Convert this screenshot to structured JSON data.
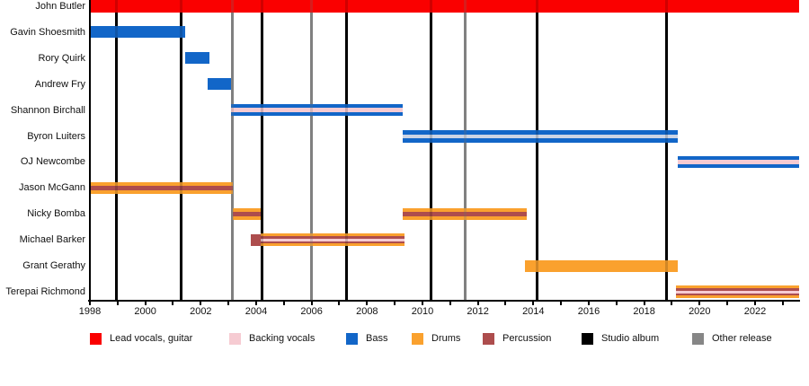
{
  "chart_data": {
    "type": "timeline",
    "description": "Band membership timeline with instrument roles and release markers",
    "members": [
      {
        "name": "John Butler",
        "stints": [
          {
            "start": 1998.0,
            "end": 2023.6,
            "roles": [
              "lead_vocals_guitar"
            ]
          }
        ]
      },
      {
        "name": "Gavin Shoesmith",
        "stints": [
          {
            "start": 1998.0,
            "end": 2001.45,
            "roles": [
              "bass"
            ]
          }
        ]
      },
      {
        "name": "Rory Quirk",
        "stints": [
          {
            "start": 2001.45,
            "end": 2002.3,
            "roles": [
              "bass"
            ]
          }
        ]
      },
      {
        "name": "Andrew Fry",
        "stints": [
          {
            "start": 2002.25,
            "end": 2003.1,
            "roles": [
              "bass"
            ]
          }
        ]
      },
      {
        "name": "Shannon Birchall",
        "stints": [
          {
            "start": 2003.1,
            "end": 2009.3,
            "roles": [
              "bass",
              "backing_vocals",
              "bass"
            ]
          }
        ]
      },
      {
        "name": "Byron Luiters",
        "stints": [
          {
            "start": 2009.3,
            "end": 2019.2,
            "roles": [
              "bass",
              "backing_vocals_pale",
              "bass"
            ]
          }
        ]
      },
      {
        "name": "OJ Newcombe",
        "stints": [
          {
            "start": 2019.2,
            "end": 2023.6,
            "roles": [
              "bass",
              "backing_vocals",
              "bass"
            ]
          }
        ]
      },
      {
        "name": "Jason McGann",
        "stints": [
          {
            "start": 1998.0,
            "end": 2003.15,
            "roles": [
              "drums",
              "percussion",
              "drums"
            ]
          }
        ]
      },
      {
        "name": "Nicky Bomba",
        "stints": [
          {
            "start": 2003.15,
            "end": 2004.15,
            "roles": [
              "drums",
              "percussion",
              "drums"
            ]
          },
          {
            "start": 2009.3,
            "end": 2013.75,
            "roles": [
              "drums",
              "percussion",
              "drums"
            ]
          }
        ]
      },
      {
        "name": "Michael Barker",
        "stints": [
          {
            "start": 2003.8,
            "end": 2004.15,
            "roles": [
              "percussion"
            ]
          },
          {
            "start": 2004.15,
            "end": 2009.35,
            "roles": [
              "drums",
              "percussion",
              "backing_vocals",
              "percussion",
              "drums"
            ]
          }
        ]
      },
      {
        "name": "Grant Gerathy",
        "stints": [
          {
            "start": 2013.7,
            "end": 2019.2,
            "roles": [
              "drums"
            ]
          }
        ]
      },
      {
        "name": "Terepai Richmond",
        "stints": [
          {
            "start": 2019.15,
            "end": 2023.6,
            "roles": [
              "drums",
              "percussion",
              "backing_vocals",
              "percussion",
              "drums"
            ]
          }
        ]
      }
    ],
    "events": {
      "studio_albums": [
        1998.95,
        2001.3,
        2004.2,
        2007.25,
        2010.3,
        2014.15,
        2018.8
      ],
      "other_releases": [
        2003.15,
        2006.0,
        2011.55
      ]
    },
    "x_axis": {
      "min": 1998,
      "max": 2023.6,
      "major_tick_years": [
        1998,
        2000,
        2002,
        2004,
        2006,
        2008,
        2010,
        2012,
        2014,
        2016,
        2018,
        2020,
        2022
      ],
      "major_tick_labels": [
        "1998",
        "2000",
        "2002",
        "2004",
        "2006",
        "2008",
        "2010",
        "2012",
        "2014",
        "2016",
        "2018",
        "2020",
        "2022"
      ],
      "minor_tick_step": 1,
      "grid": false
    },
    "legend": [
      {
        "label": "Lead vocals, guitar",
        "role": "lead_vocals_guitar"
      },
      {
        "label": "Backing vocals",
        "role": "backing_vocals"
      },
      {
        "label": "Bass",
        "role": "bass"
      },
      {
        "label": "Drums",
        "role": "drums"
      },
      {
        "label": "Percussion",
        "role": "percussion"
      },
      {
        "label": "Studio album",
        "role": "studio_album"
      },
      {
        "label": "Other release",
        "role": "other_release"
      }
    ],
    "colors": {
      "lead_vocals_guitar": "#fa0000",
      "backing_vocals": "#f6cbd2",
      "backing_vocals_pale": "#ccd4e4",
      "bass": "#1266c8",
      "drums": "#faa12e",
      "percussion": "#ad4d4d",
      "studio_album": "#000000",
      "other_release": "#868686"
    }
  }
}
